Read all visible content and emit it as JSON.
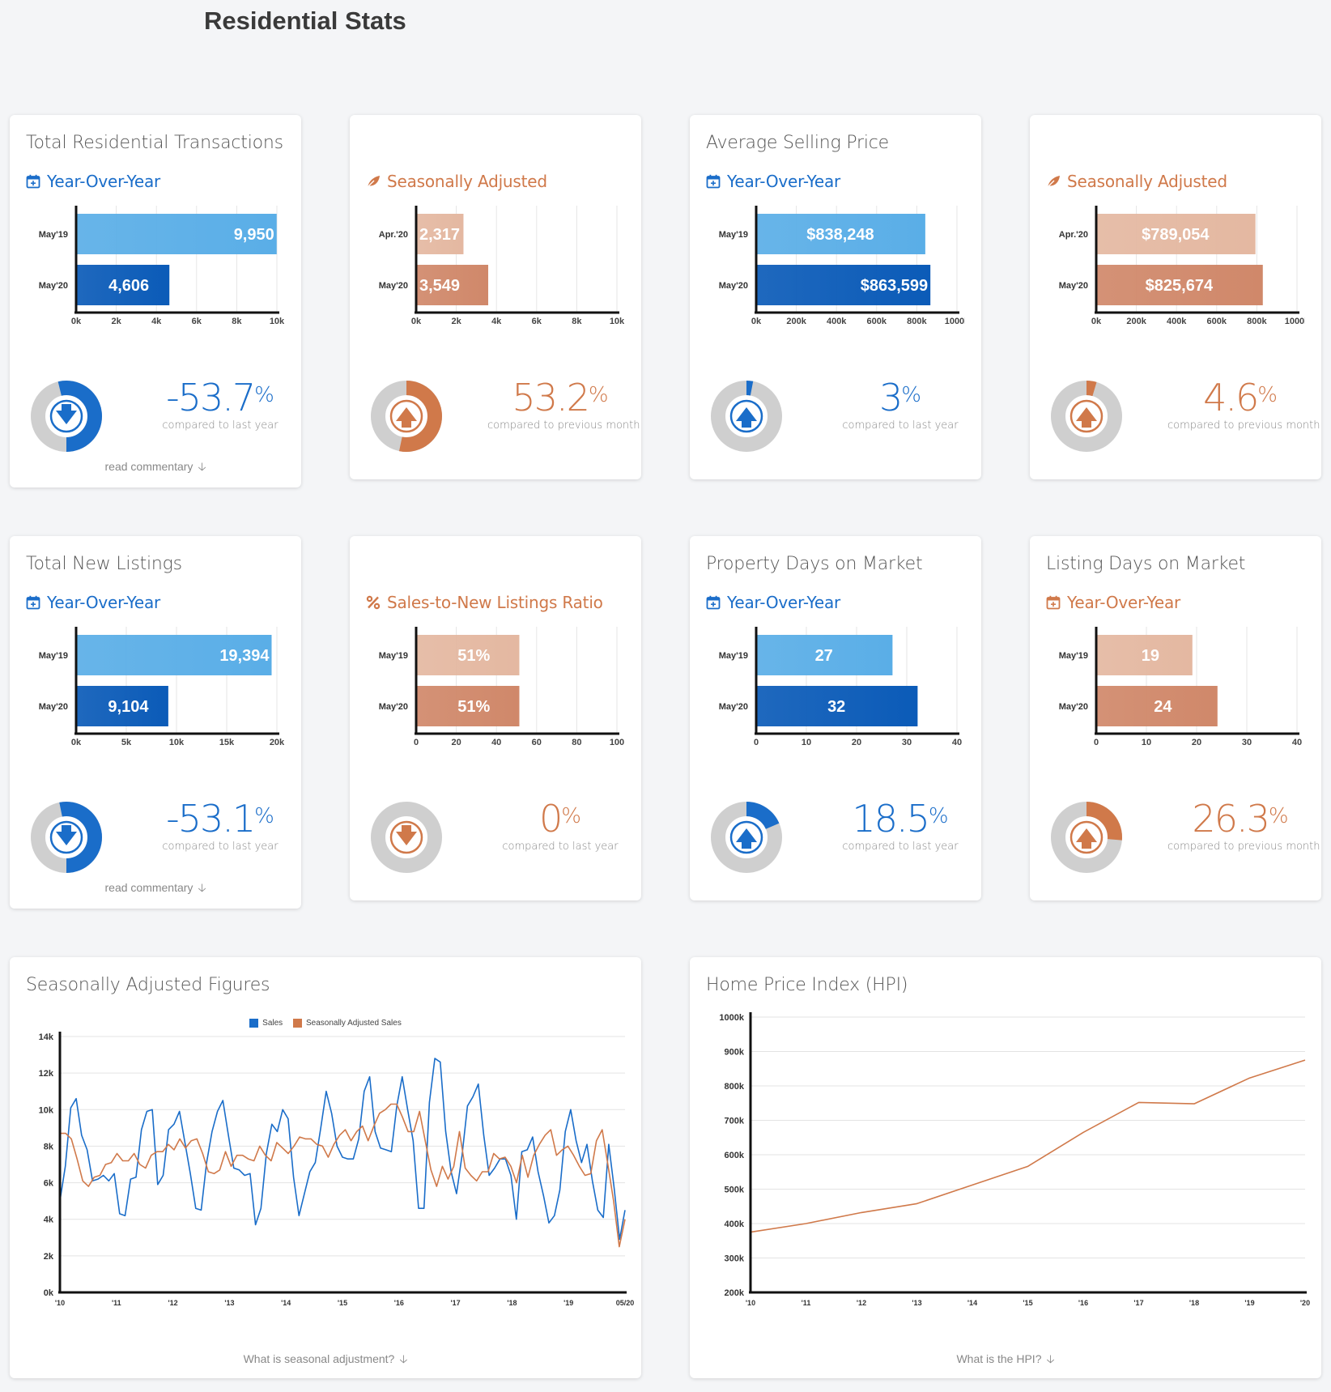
{
  "page_title": "Residential Stats",
  "colors": {
    "blue_light": "#5aaee7",
    "blue_dark": "#0b5bb8",
    "orange_light": "#e4b8a1",
    "orange_dark": "#d0886a",
    "blue_text": "#1a6dc9",
    "orange_text": "#d0794a",
    "donut_track": "#cfcfcf"
  },
  "cards": [
    {
      "id": "c1",
      "title": "Total Residential Transactions",
      "subtitle": "Year-Over-Year",
      "subtitle_icon": "calendar-icon",
      "theme": "blue",
      "bars": [
        {
          "label": "May'19",
          "value": 9950,
          "display": "9,950"
        },
        {
          "label": "May'20",
          "value": 4606,
          "display": "4,606"
        }
      ],
      "axis": {
        "max": 10000,
        "ticks": [
          "0k",
          "2k",
          "4k",
          "6k",
          "8k",
          "10k"
        ]
      },
      "stat": {
        "value": "-53.7",
        "unit": "%",
        "caption": "compared to last year",
        "direction": "down",
        "fraction": 0.537
      },
      "read_more": "read commentary"
    },
    {
      "id": "c2",
      "title": "",
      "subtitle": "Seasonally Adjusted",
      "subtitle_icon": "leaf-icon",
      "theme": "orange",
      "bars": [
        {
          "label": "Apr.'20",
          "value": 2317,
          "display": "2,317"
        },
        {
          "label": "May'20",
          "value": 3549,
          "display": "3,549"
        }
      ],
      "axis": {
        "max": 10000,
        "ticks": [
          "0k",
          "2k",
          "4k",
          "6k",
          "8k",
          "10k"
        ]
      },
      "stat": {
        "value": "53.2",
        "unit": "%",
        "caption": "compared to previous month",
        "direction": "up",
        "fraction": 0.532
      },
      "read_more": ""
    },
    {
      "id": "c3",
      "title": "Average Selling Price",
      "subtitle": "Year-Over-Year",
      "subtitle_icon": "calendar-icon",
      "theme": "blue",
      "bars": [
        {
          "label": "May'19",
          "value": 838248,
          "display": "$838,248"
        },
        {
          "label": "May'20",
          "value": 863599,
          "display": "$863,599"
        }
      ],
      "axis": {
        "max": 1000000,
        "ticks": [
          "0k",
          "200k",
          "400k",
          "600k",
          "800k",
          "1000k"
        ]
      },
      "stat": {
        "value": "3",
        "unit": "%",
        "caption": "compared to last year",
        "direction": "up",
        "fraction": 0.03
      },
      "read_more": ""
    },
    {
      "id": "c4",
      "title": "",
      "subtitle": "Seasonally Adjusted",
      "subtitle_icon": "leaf-icon",
      "theme": "orange",
      "bars": [
        {
          "label": "Apr.'20",
          "value": 789054,
          "display": "$789,054"
        },
        {
          "label": "May'20",
          "value": 825674,
          "display": "$825,674"
        }
      ],
      "axis": {
        "max": 1000000,
        "ticks": [
          "0k",
          "200k",
          "400k",
          "600k",
          "800k",
          "1000k"
        ]
      },
      "stat": {
        "value": "4.6",
        "unit": "%",
        "caption": "compared to previous month",
        "direction": "up",
        "fraction": 0.046
      },
      "read_more": ""
    },
    {
      "id": "c5",
      "title": "Total New Listings",
      "subtitle": "Year-Over-Year",
      "subtitle_icon": "calendar-icon",
      "theme": "blue",
      "bars": [
        {
          "label": "May'19",
          "value": 19394,
          "display": "19,394"
        },
        {
          "label": "May'20",
          "value": 9104,
          "display": "9,104"
        }
      ],
      "axis": {
        "max": 20000,
        "ticks": [
          "0k",
          "5k",
          "10k",
          "15k",
          "20k"
        ]
      },
      "stat": {
        "value": "-53.1",
        "unit": "%",
        "caption": "compared to last year",
        "direction": "down",
        "fraction": 0.531
      },
      "read_more": "read commentary"
    },
    {
      "id": "c6",
      "title": "",
      "subtitle": "Sales-to-New Listings Ratio",
      "subtitle_icon": "percent-icon",
      "theme": "orange",
      "bars": [
        {
          "label": "May'19",
          "value": 51,
          "display": "51%"
        },
        {
          "label": "May'20",
          "value": 51,
          "display": "51%"
        }
      ],
      "axis": {
        "max": 100,
        "ticks": [
          "0",
          "20",
          "40",
          "60",
          "80",
          "100"
        ]
      },
      "stat": {
        "value": "0",
        "unit": "%",
        "caption": "compared to last year",
        "direction": "down",
        "fraction": 0
      },
      "read_more": ""
    },
    {
      "id": "c7",
      "title": "Property Days on Market",
      "subtitle": "Year-Over-Year",
      "subtitle_icon": "calendar-icon",
      "theme": "blue",
      "bars": [
        {
          "label": "May'19",
          "value": 27,
          "display": "27"
        },
        {
          "label": "May'20",
          "value": 32,
          "display": "32"
        }
      ],
      "axis": {
        "max": 40,
        "ticks": [
          "0",
          "10",
          "20",
          "30",
          "40"
        ]
      },
      "stat": {
        "value": "18.5",
        "unit": "%",
        "caption": "compared to last year",
        "direction": "up",
        "fraction": 0.185
      },
      "read_more": ""
    },
    {
      "id": "c8",
      "title": "Listing Days on Market",
      "subtitle": "Year-Over-Year",
      "subtitle_icon": "calendar-icon",
      "theme": "orange",
      "bars": [
        {
          "label": "May'19",
          "value": 19,
          "display": "19"
        },
        {
          "label": "May'20",
          "value": 24,
          "display": "24"
        }
      ],
      "axis": {
        "max": 40,
        "ticks": [
          "0",
          "10",
          "20",
          "30",
          "40"
        ]
      },
      "stat": {
        "value": "26.3",
        "unit": "%",
        "caption": "compared to previous month",
        "direction": "up",
        "fraction": 0.263
      },
      "read_more": ""
    }
  ],
  "seasonal": {
    "title": "Seasonally Adjusted Figures",
    "footer": "What is seasonal adjustment?",
    "legend": [
      "Sales",
      "Seasonally Adjusted Sales"
    ]
  },
  "hpi": {
    "title": "Home Price Index (HPI)",
    "footer": "What is the HPI?"
  },
  "chart_data": [
    {
      "type": "line",
      "title": "Seasonally Adjusted Figures",
      "x_tick_labels": [
        "'10",
        "'11",
        "'12",
        "'13",
        "'14",
        "'15",
        "'16",
        "'17",
        "'18",
        "'19",
        "05/20"
      ],
      "ylim": [
        0,
        14000
      ],
      "y_tick_labels": [
        "0k",
        "2k",
        "4k",
        "6k",
        "8k",
        "10k",
        "12k",
        "14k"
      ],
      "legend": "top",
      "grid": true,
      "series": [
        {
          "name": "Sales",
          "color": "#1a6dc9",
          "values": [
            5000,
            6900,
            10100,
            10600,
            8600,
            7800,
            6100,
            6200,
            6400,
            6100,
            6500,
            4300,
            4200,
            6200,
            6300,
            8900,
            9900,
            10000,
            5900,
            6400,
            8900,
            9200,
            9900,
            8200,
            6500,
            4600,
            4500,
            7100,
            8800,
            9900,
            10500,
            8600,
            6800,
            6700,
            6400,
            6500,
            3700,
            4600,
            7600,
            9200,
            8800,
            10000,
            9500,
            6300,
            4200,
            5400,
            6600,
            7100,
            9000,
            11000,
            9800,
            8000,
            7400,
            7300,
            7300,
            8400,
            11000,
            11800,
            8800,
            7900,
            7800,
            7700,
            10200,
            11800,
            10000,
            8300,
            4600,
            4600,
            10400,
            12800,
            12600,
            8800,
            6600,
            5400,
            7500,
            10200,
            10700,
            11400,
            8600,
            6400,
            6800,
            7300,
            7300,
            6400,
            4000,
            7700,
            7800,
            8500,
            6600,
            5300,
            3800,
            4200,
            5600,
            8800,
            10000,
            8300,
            7100,
            8100,
            6100,
            4500,
            4100,
            8100,
            5700,
            2900,
            4500
          ]
        },
        {
          "name": "Seasonally Adjusted Sales",
          "color": "#d0794a",
          "values": [
            8700,
            8700,
            8400,
            7300,
            6100,
            5800,
            6300,
            6400,
            7000,
            7100,
            7600,
            7200,
            7200,
            7600,
            7000,
            6800,
            7500,
            7700,
            7700,
            8100,
            7800,
            8400,
            7900,
            8300,
            8400,
            7600,
            6600,
            6500,
            6700,
            7700,
            6900,
            7500,
            7500,
            7300,
            7200,
            8000,
            7500,
            7200,
            8200,
            7900,
            7600,
            8000,
            8500,
            8400,
            8400,
            8100,
            8000,
            7400,
            8100,
            8600,
            8900,
            8300,
            8800,
            9100,
            8300,
            9100,
            9800,
            10000,
            10300,
            10300,
            9600,
            8800,
            8800,
            9900,
            8300,
            6700,
            5800,
            6900,
            6200,
            6900,
            8800,
            6800,
            6400,
            6100,
            6600,
            6600,
            7600,
            7300,
            7400,
            6900,
            6000,
            7500,
            6300,
            7500,
            8100,
            8600,
            8900,
            7500,
            7800,
            8000,
            7500,
            6900,
            6400,
            6500,
            8300,
            8900,
            7000,
            5000,
            2500,
            4000
          ]
        }
      ]
    },
    {
      "type": "line",
      "title": "Home Price Index (HPI)",
      "x_tick_labels": [
        "'10",
        "'11",
        "'12",
        "'13",
        "'14",
        "'15",
        "'16",
        "'17",
        "'18",
        "'19",
        "'20"
      ],
      "ylim": [
        200000,
        1000000
      ],
      "y_tick_labels": [
        "200k",
        "300k",
        "400k",
        "500k",
        "600k",
        "700k",
        "800k",
        "900k",
        "1000k"
      ],
      "grid": true,
      "series": [
        {
          "name": "",
          "color": "#d0794a",
          "values": [
            375000,
            400000,
            432000,
            458000,
            512000,
            566000,
            665000,
            752000,
            748000,
            823000,
            875000
          ]
        }
      ]
    }
  ]
}
